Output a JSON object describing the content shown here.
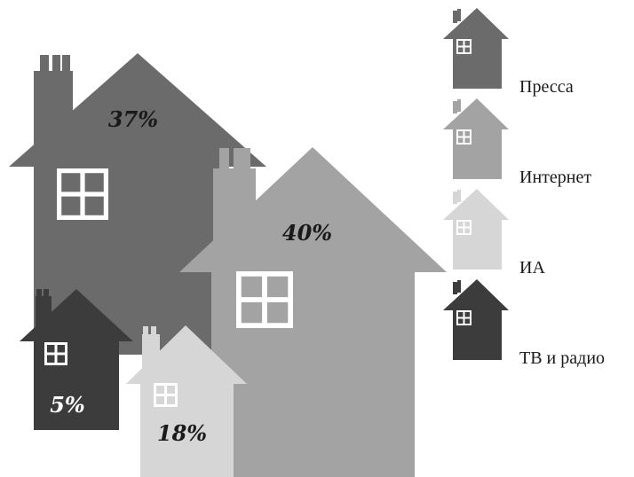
{
  "chart_data": {
    "type": "pictogram",
    "unit": "%",
    "series": [
      {
        "name": "Пресса",
        "value": 37,
        "value_label": "37%",
        "color": "#6b6b6b",
        "label_color": "#1a1a1a"
      },
      {
        "name": "Интернет",
        "value": 40,
        "value_label": "40%",
        "color": "#a3a3a3",
        "label_color": "#1a1a1a"
      },
      {
        "name": "ИА",
        "value": 18,
        "value_label": "18%",
        "color": "#d6d6d6",
        "label_color": "#1a1a1a"
      },
      {
        "name": "ТВ и радио",
        "value": 5,
        "value_label": "5%",
        "color": "#3c3c3c",
        "label_color": "#ffffff"
      }
    ]
  }
}
